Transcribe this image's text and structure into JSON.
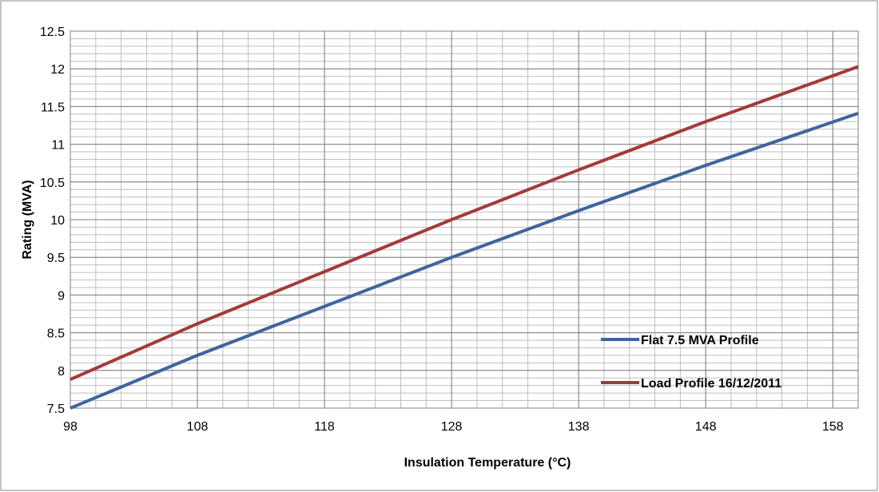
{
  "chart_data": {
    "type": "line",
    "title": "",
    "xlabel": "Insulation Temperature (°C)",
    "ylabel": "Rating (MVA)",
    "xlim": [
      98,
      160
    ],
    "ylim": [
      7.5,
      12.5
    ],
    "x_ticks": [
      98,
      108,
      118,
      128,
      138,
      148,
      158
    ],
    "y_ticks": [
      7.5,
      8,
      8.5,
      9,
      9.5,
      10,
      10.5,
      11,
      11.5,
      12,
      12.5
    ],
    "x_ticks_text": [
      "98",
      "108",
      "118",
      "128",
      "138",
      "148",
      "158"
    ],
    "y_ticks_text": [
      "7.5",
      "8",
      "8.5",
      "9",
      "9.5",
      "10",
      "10.5",
      "11",
      "11.5",
      "12",
      "12.5"
    ],
    "grid": true,
    "legend_position": "bottom-right",
    "series": [
      {
        "name": "Flat 7.5 MVA Profile",
        "color": "#3f64a0",
        "x": [
          98,
          108,
          118,
          128,
          138,
          148,
          160
        ],
        "y": [
          7.5,
          8.2,
          8.85,
          9.5,
          10.12,
          10.72,
          11.41
        ]
      },
      {
        "name": "Load Profile 16/12/2011",
        "color": "#a33a3a",
        "x": [
          98,
          108,
          118,
          128,
          138,
          148,
          160
        ],
        "y": [
          7.88,
          8.62,
          9.31,
          10.0,
          10.66,
          11.3,
          12.03
        ]
      }
    ]
  }
}
